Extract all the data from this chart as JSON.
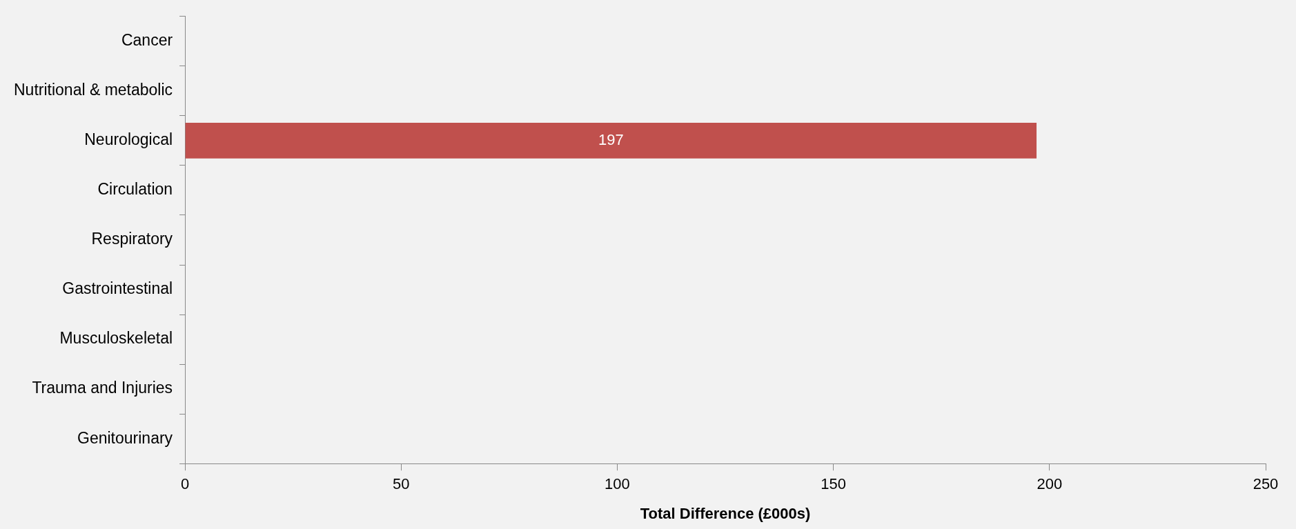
{
  "chart_data": {
    "type": "bar",
    "orientation": "horizontal",
    "xlabel": "Total Difference (£000s)",
    "categories": [
      "Cancer",
      "Nutritional & metabolic",
      "Neurological",
      "Circulation",
      "Respiratory",
      "Gastrointestinal",
      "Musculoskeletal",
      "Trauma and Injuries",
      "Genitourinary"
    ],
    "values": [
      null,
      null,
      197,
      null,
      null,
      null,
      null,
      null,
      null
    ],
    "color": "#c0504d",
    "xlim": [
      0,
      250
    ],
    "xticks": [
      0,
      50,
      100,
      150,
      200,
      250
    ],
    "grid": false,
    "legend": false,
    "data_labels": true
  }
}
